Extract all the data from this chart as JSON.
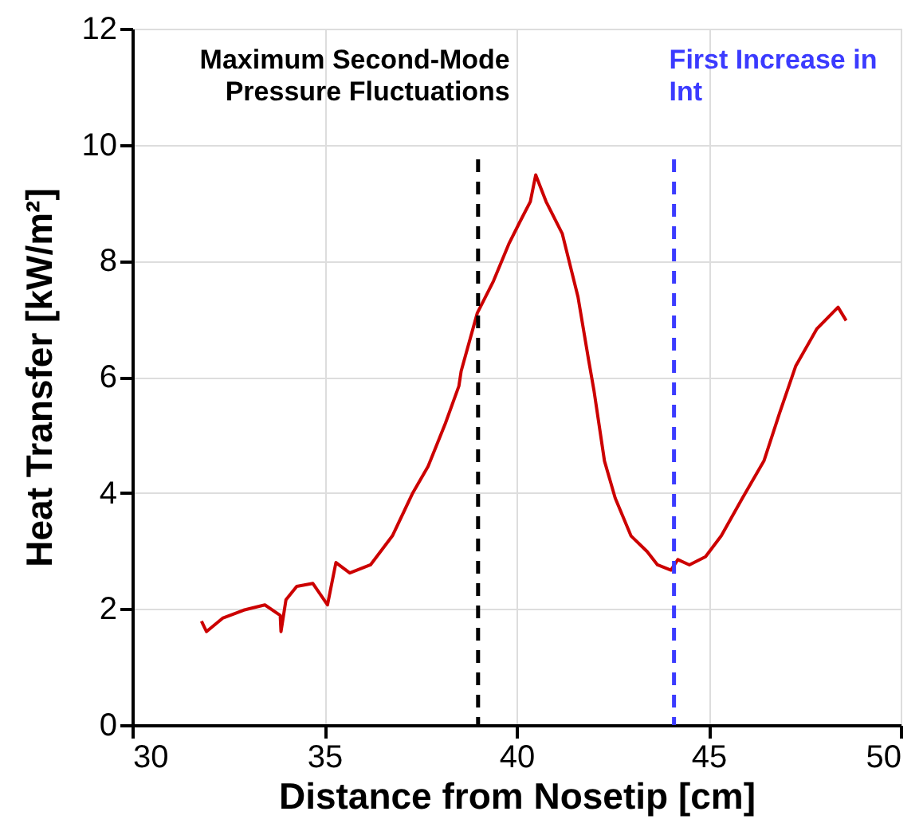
{
  "chart_data": {
    "type": "line",
    "xlabel": "Distance from Nosetip [cm]",
    "ylabel": "Heat Transfer [kW/m²]",
    "xlim": [
      30,
      50
    ],
    "xticks": [
      30,
      35,
      40,
      45,
      50
    ],
    "ylim": [
      0,
      12
    ],
    "yticks": [
      0,
      2,
      4,
      6,
      8,
      10,
      12
    ],
    "grid": true,
    "line_style": "solid",
    "marker": "none",
    "series": [
      {
        "color": "#cc0000",
        "x": [
          31.8,
          31.93,
          32.35,
          32.9,
          33.45,
          33.85,
          33.87,
          34.0,
          34.28,
          34.7,
          35.08,
          35.3,
          35.66,
          36.2,
          36.77,
          37.3,
          37.7,
          38.15,
          38.5,
          38.56,
          38.98,
          39.4,
          39.8,
          40.08,
          40.36,
          40.5,
          40.77,
          41.19,
          41.6,
          41.88,
          42.02,
          42.29,
          42.57,
          42.98,
          43.4,
          43.67,
          44.02,
          44.2,
          44.5,
          44.92,
          45.33,
          45.88,
          46.44,
          46.85,
          47.27,
          47.82,
          48.37,
          48.58
        ],
        "values": [
          1.79,
          1.61,
          1.84,
          1.98,
          2.07,
          1.89,
          1.61,
          2.16,
          2.39,
          2.44,
          2.07,
          2.8,
          2.62,
          2.76,
          3.26,
          4.0,
          4.46,
          5.2,
          5.84,
          6.1,
          7.1,
          7.65,
          8.29,
          8.66,
          9.02,
          9.48,
          9.02,
          8.47,
          7.38,
          6.28,
          5.75,
          4.55,
          3.91,
          3.26,
          2.99,
          2.76,
          2.67,
          2.85,
          2.76,
          2.9,
          3.26,
          3.91,
          4.55,
          5.38,
          6.19,
          6.83,
          7.2,
          6.97
        ]
      }
    ],
    "ref_lines": [
      {
        "axis": "x",
        "value": 39.0,
        "label": "Maximum Second-Mode\nPressure Fluctuations",
        "color": "#000000",
        "line_style": "dashed"
      },
      {
        "axis": "x",
        "value": 44.1,
        "label": "First Increase in\nInt",
        "color": "#3b3bff",
        "line_style": "dashed"
      }
    ]
  }
}
